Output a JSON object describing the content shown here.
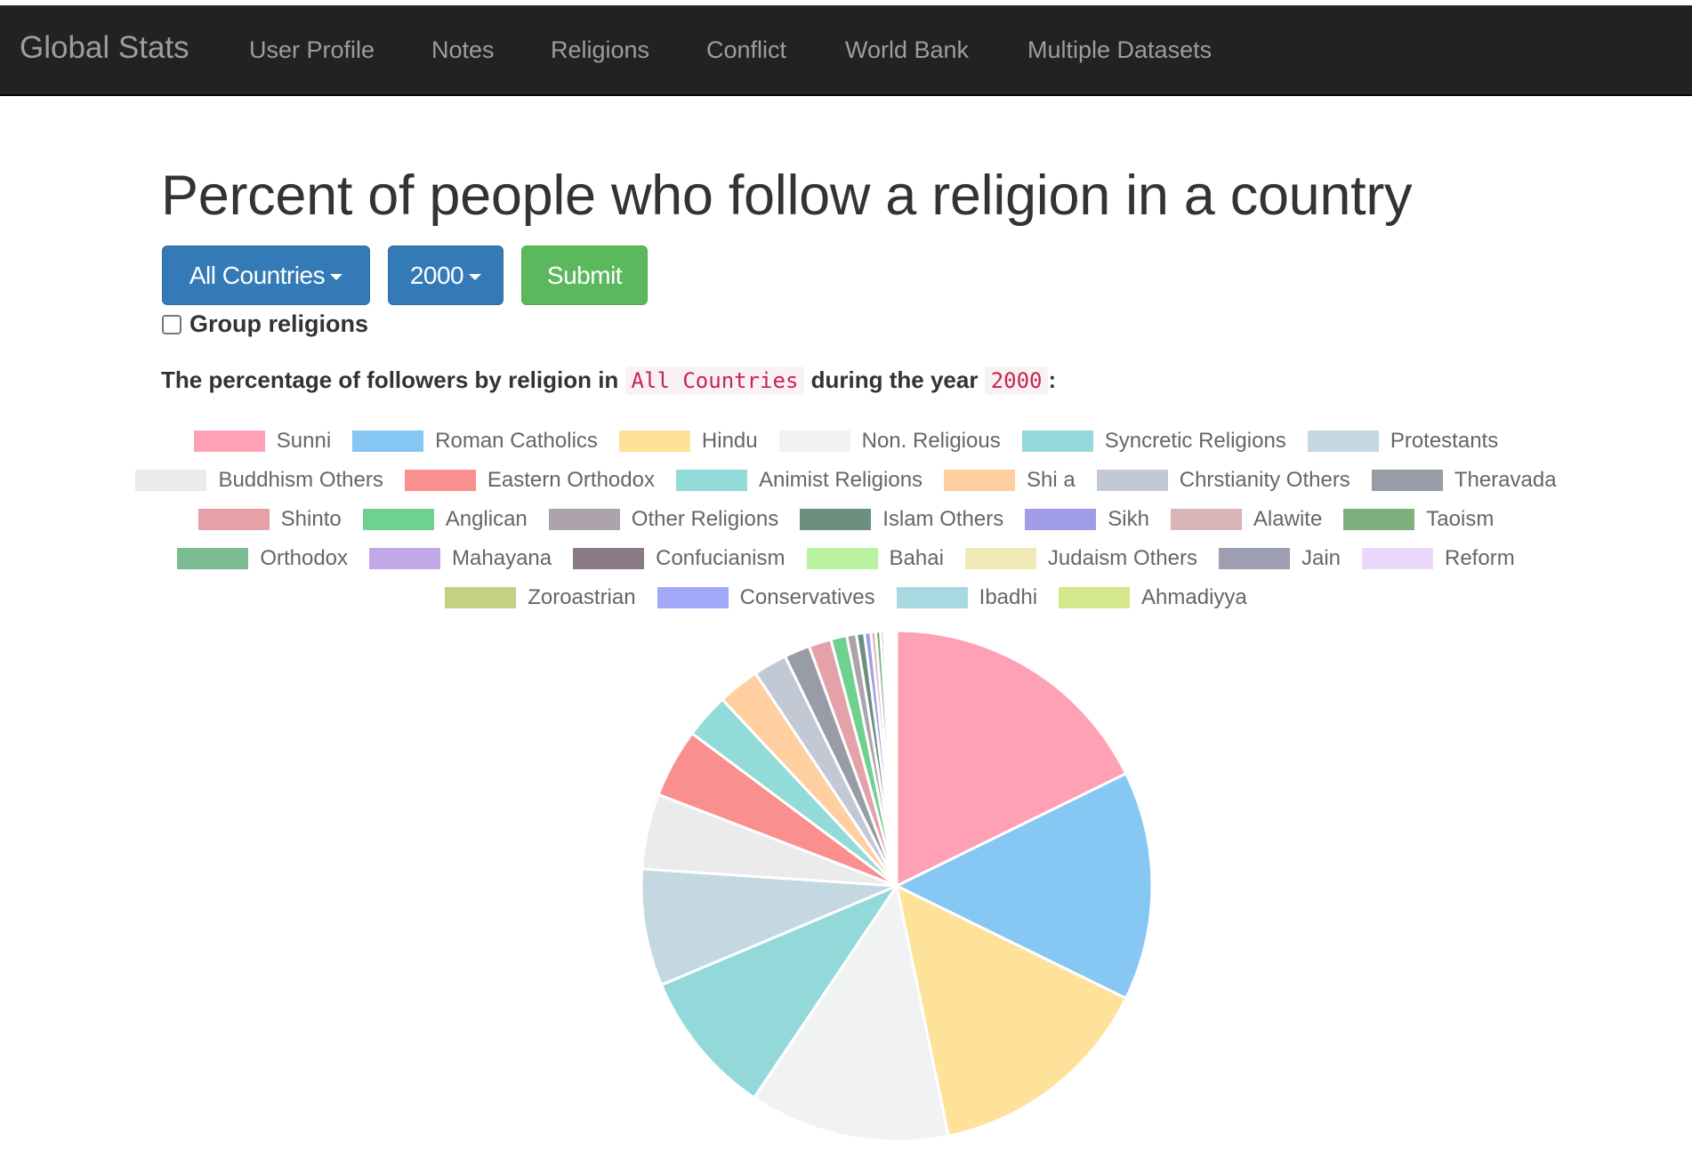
{
  "navbar": {
    "brand": "Global Stats",
    "links": [
      "User Profile",
      "Notes",
      "Religions",
      "Conflict",
      "World Bank",
      "Multiple Datasets"
    ]
  },
  "page": {
    "title": "Percent of people who follow a religion in a country",
    "country_dropdown": "All Countries",
    "year_dropdown": "2000",
    "submit_label": "Submit",
    "group_checkbox_label": "Group religions",
    "group_checked": false,
    "desc_prefix": "The percentage of followers by religion in",
    "desc_country": "All Countries",
    "desc_middle": "during the year",
    "desc_year": "2000",
    "desc_suffix": ":"
  },
  "colors": {
    "navbar_bg": "#222222",
    "primary": "#337ab7",
    "success": "#5cb85c"
  },
  "chart_data": {
    "type": "pie",
    "title": "",
    "categories": [
      "Sunni",
      "Roman Catholics",
      "Hindu",
      "Non. Religious",
      "Syncretic Religions",
      "Protestants",
      "Buddhism Others",
      "Eastern Orthodox",
      "Animist Religions",
      "Shi a",
      "Chrstianity Others",
      "Theravada",
      "Shinto",
      "Anglican",
      "Other Religions",
      "Islam Others",
      "Sikh",
      "Alawite",
      "Taoism",
      "Orthodox",
      "Mahayana",
      "Confucianism",
      "Bahai",
      "Judaism Others",
      "Jain",
      "Reform",
      "Zoroastrian",
      "Conservatives",
      "Ibadhi",
      "Ahmadiyya"
    ],
    "values": [
      17.5,
      14.3,
      14.3,
      12.5,
      9.1,
      7.3,
      4.7,
      4.3,
      2.8,
      2.6,
      2.1,
      1.6,
      1.4,
      1.0,
      0.6,
      0.5,
      0.4,
      0.3,
      0.3,
      0.2,
      0.1,
      0.1,
      0.1,
      0.1,
      0.1,
      0.1,
      0.05,
      0.05,
      0.05,
      0.05
    ],
    "colors": [
      "#ffa1b5",
      "#86c7f3",
      "#ffe29a",
      "#f1f2f4",
      "#93d9d9",
      "#c4d8e2",
      "#ebebeb",
      "#fa8f8f",
      "#93dbd8",
      "#ffcf9f",
      "#c3c9d4",
      "#989ca6",
      "#e4a1a8",
      "#6fd18f",
      "#ada3ad",
      "#6b9080",
      "#a09ce8",
      "#d9b5b5",
      "#7eaf7c",
      "#7cbc92",
      "#c2a8e8",
      "#8b7b86",
      "#b9f2a1",
      "#efe9b5",
      "#9e9fb3",
      "#ead9fc",
      "#c6d084",
      "#a3a9f9",
      "#a8d8e0",
      "#d4e78a"
    ],
    "legend_position": "top"
  }
}
